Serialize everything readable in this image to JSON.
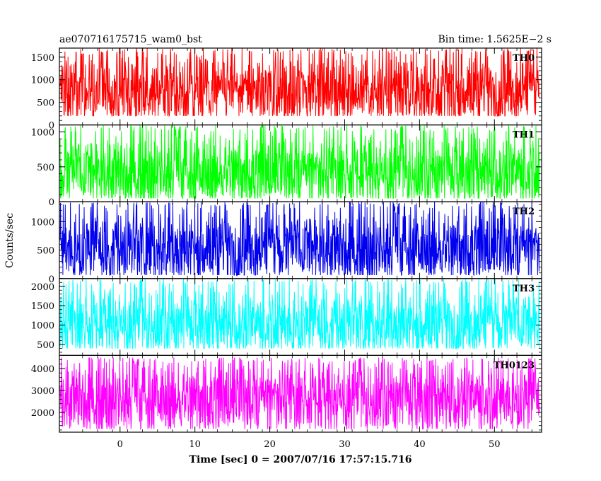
{
  "header": {
    "left_title": "ae070716175715_wam0_bst",
    "right_title": "Bin time: 1.5625E−2 s"
  },
  "chart_data": {
    "type": "line",
    "xlabel": "Time [sec] 0 = 2007/07/16 17:57:15.716",
    "ylabel": "Counts/sec",
    "xlim": [
      -8.1,
      56.3
    ],
    "x_data_range": [
      -8,
      56
    ],
    "xticks": [
      0,
      10,
      20,
      30,
      40,
      50
    ],
    "xtick_labels": [
      "0",
      "10",
      "20",
      "30",
      "40",
      "50"
    ],
    "panels": [
      {
        "name": "TH0",
        "color": "#ff0000",
        "ylim": [
          0,
          1700
        ],
        "yticks": [
          0,
          500,
          1000,
          1500
        ],
        "ytick_labels": [
          "0",
          "500",
          "1000",
          "1500"
        ],
        "approx_mean": 780,
        "approx_min": 200,
        "approx_max": 1700
      },
      {
        "name": "TH1",
        "color": "#00ff00",
        "ylim": [
          0,
          1100
        ],
        "yticks": [
          0,
          500,
          1000
        ],
        "ytick_labels": [
          "0",
          "500",
          "1000"
        ],
        "approx_mean": 440,
        "approx_min": 50,
        "approx_max": 1100
      },
      {
        "name": "TH2",
        "color": "#0000ee",
        "ylim": [
          0,
          1350
        ],
        "yticks": [
          0,
          500,
          1000
        ],
        "ytick_labels": [
          "0",
          "500",
          "1000"
        ],
        "approx_mean": 560,
        "approx_min": 60,
        "approx_max": 1350
      },
      {
        "name": "TH3",
        "color": "#00ffff",
        "ylim": [
          220,
          2200
        ],
        "yticks": [
          500,
          1000,
          1500,
          2000
        ],
        "ytick_labels": [
          "500",
          "1000",
          "1500",
          "2000"
        ],
        "approx_mean": 1050,
        "approx_min": 400,
        "approx_max": 2200
      },
      {
        "name": "TH0123",
        "color": "#ff00ff",
        "ylim": [
          1100,
          4600
        ],
        "yticks": [
          2000,
          3000,
          4000
        ],
        "ytick_labels": [
          "2000",
          "3000",
          "4000"
        ],
        "approx_mean": 2700,
        "approx_min": 1250,
        "approx_max": 4500
      }
    ]
  }
}
